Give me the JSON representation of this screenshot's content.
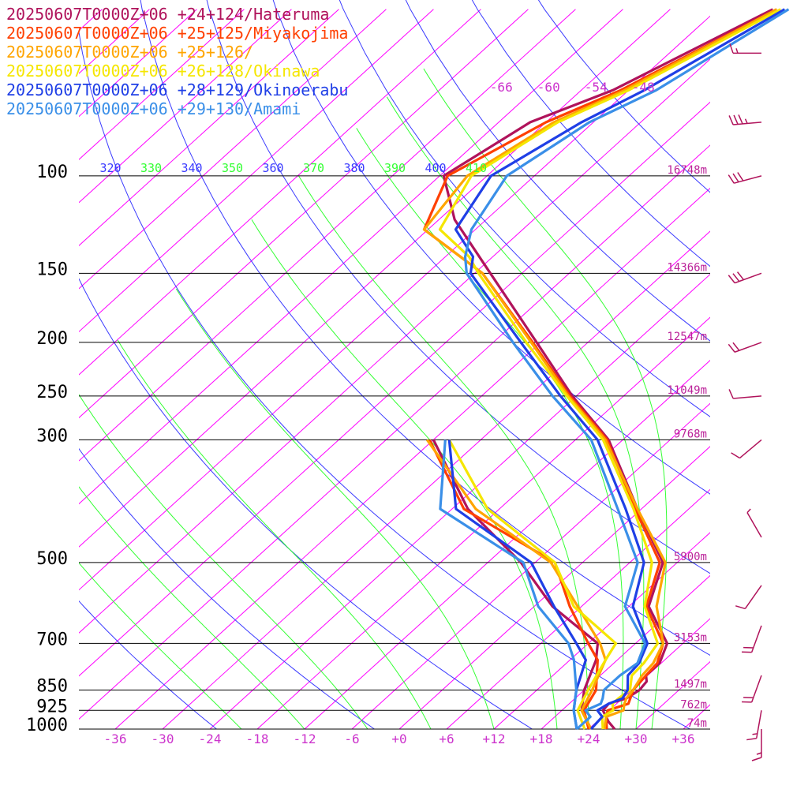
{
  "chart_data": {
    "type": "line",
    "title": "",
    "colors": {
      "isobar": "#000000",
      "isotherm": "#ff00ff",
      "dry_adiabat": "#3b3bff",
      "moist_adiabat": "#33ff33",
      "label_magenta": "#cc33cc",
      "height_label": "#bb2299"
    },
    "legend": [
      {
        "text": "20250607T0000Z+06 +24+124/Hateruma",
        "color": "#b0135b"
      },
      {
        "text": "20250607T0000Z+06 +25+125/Miyakojima",
        "color": "#ff4000"
      },
      {
        "text": "20250607T0000Z+06 +25+126/",
        "color": "#ffa500"
      },
      {
        "text": "20250607T0000Z+06 +26+128/Okinawa",
        "color": "#f5e600"
      },
      {
        "text": "20250607T0000Z+06 +28+129/Okinoerabu",
        "color": "#1f3fe6"
      },
      {
        "text": "20250607T0000Z+06 +29+130/Amami",
        "color": "#3a8fe8"
      }
    ],
    "pressure_levels": [
      {
        "p": 100,
        "label": "100",
        "height": "16748m"
      },
      {
        "p": 150,
        "label": "150",
        "height": "14366m"
      },
      {
        "p": 200,
        "label": "200",
        "height": "12547m"
      },
      {
        "p": 250,
        "label": "250",
        "height": "11049m"
      },
      {
        "p": 300,
        "label": "300",
        "height": "9768m"
      },
      {
        "p": 500,
        "label": "500",
        "height": "5900m"
      },
      {
        "p": 700,
        "label": "700",
        "height": "3153m"
      },
      {
        "p": 850,
        "label": "850",
        "height": "1497m"
      },
      {
        "p": 925,
        "label": "925",
        "height": "762m"
      },
      {
        "p": 1000,
        "label": "1000",
        "height": "74m"
      }
    ],
    "x_tick_labels": [
      "-36",
      "-30",
      "-24",
      "-18",
      "-12",
      "-6",
      "+0",
      "+6",
      "+12",
      "+18",
      "+24",
      "+30",
      "+36"
    ],
    "x_ticks": [
      -36,
      -30,
      -24,
      -18,
      -12,
      -6,
      0,
      6,
      12,
      18,
      24,
      30,
      36
    ],
    "upper_isotherm_labels": [
      "-66",
      "-60",
      "-54",
      "-48"
    ],
    "upper_isotherm_values": [
      -66,
      -60,
      -54,
      -48
    ],
    "theta_labels": [
      {
        "text": "320",
        "kind": "dry"
      },
      {
        "text": "330",
        "kind": "moist"
      },
      {
        "text": "340",
        "kind": "dry"
      },
      {
        "text": "350",
        "kind": "moist"
      },
      {
        "text": "360",
        "kind": "dry"
      },
      {
        "text": "370",
        "kind": "moist"
      },
      {
        "text": "380",
        "kind": "dry"
      },
      {
        "text": "390",
        "kind": "moist"
      },
      {
        "text": "400",
        "kind": "dry"
      },
      {
        "text": "410",
        "kind": "moist"
      }
    ],
    "series": [
      {
        "name": "20250607T0000Z+06 +24+124/Hateruma",
        "color": "#b0135b",
        "temperature": [
          [
            1000,
            27.3
          ],
          [
            970,
            25.5
          ],
          [
            925,
            23.2
          ],
          [
            900,
            23.0
          ],
          [
            880,
            24.5
          ],
          [
            850,
            25.0
          ],
          [
            820,
            24.7
          ],
          [
            800,
            23.8
          ],
          [
            760,
            23.8
          ],
          [
            700,
            22.0
          ],
          [
            600,
            14.5
          ],
          [
            500,
            10.2
          ],
          [
            400,
            -0.5
          ],
          [
            300,
            -13.8
          ],
          [
            250,
            -24.5
          ],
          [
            200,
            -36.5
          ],
          [
            150,
            -52.0
          ],
          [
            120,
            -64.0
          ],
          [
            100,
            -71.5
          ],
          [
            80,
            -68.0
          ],
          [
            70,
            -62.0
          ],
          [
            50,
            -53.0
          ]
        ],
        "dewpoint": [
          [
            1000,
            24.3
          ],
          [
            925,
            20.5
          ],
          [
            850,
            18.0
          ],
          [
            750,
            15.3
          ],
          [
            700,
            13.2
          ],
          [
            600,
            2.3
          ],
          [
            500,
            -7.8
          ],
          [
            400,
            -22.0
          ],
          [
            300,
            -36.0
          ]
        ]
      },
      {
        "name": "20250607T0000Z+06 +25+125/Miyakojima",
        "color": "#ff4000",
        "temperature": [
          [
            1000,
            26.3
          ],
          [
            950,
            24.5
          ],
          [
            925,
            23.8
          ],
          [
            900,
            25.5
          ],
          [
            880,
            25.0
          ],
          [
            850,
            24.2
          ],
          [
            800,
            23.8
          ],
          [
            760,
            23.5
          ],
          [
            700,
            21.5
          ],
          [
            600,
            14.2
          ],
          [
            500,
            9.8
          ],
          [
            400,
            -0.8
          ],
          [
            300,
            -14.0
          ],
          [
            250,
            -24.8
          ],
          [
            200,
            -37.0
          ],
          [
            150,
            -53.0
          ],
          [
            125,
            -66.5
          ],
          [
            100,
            -71.0
          ],
          [
            80,
            -66.0
          ],
          [
            70,
            -61.0
          ],
          [
            50,
            -52.5
          ]
        ],
        "dewpoint": [
          [
            1000,
            24.0
          ],
          [
            925,
            20.8
          ],
          [
            850,
            19.5
          ],
          [
            750,
            15.5
          ],
          [
            700,
            12.0
          ],
          [
            600,
            4.5
          ],
          [
            500,
            -3.5
          ],
          [
            400,
            -22.5
          ],
          [
            300,
            -36.5
          ]
        ]
      },
      {
        "name": "20250607T0000Z+06 +25+126/",
        "color": "#ffa500",
        "temperature": [
          [
            1000,
            26.0
          ],
          [
            950,
            24.5
          ],
          [
            925,
            25.8
          ],
          [
            900,
            25.0
          ],
          [
            880,
            24.5
          ],
          [
            850,
            24.2
          ],
          [
            800,
            23.3
          ],
          [
            760,
            23.0
          ],
          [
            700,
            21.5
          ],
          [
            600,
            15.5
          ],
          [
            500,
            10.5
          ],
          [
            400,
            -0.5
          ],
          [
            300,
            -14.2
          ],
          [
            250,
            -25.0
          ],
          [
            200,
            -37.2
          ],
          [
            150,
            -53.0
          ],
          [
            125,
            -66.5
          ],
          [
            100,
            -68.5
          ],
          [
            80,
            -65.0
          ],
          [
            70,
            -60.5
          ],
          [
            50,
            -52.5
          ]
        ],
        "dewpoint": [
          [
            1000,
            24.3
          ],
          [
            925,
            20.5
          ],
          [
            850,
            19.0
          ],
          [
            750,
            16.5
          ],
          [
            700,
            13.5
          ],
          [
            600,
            5.5
          ],
          [
            500,
            -4.0
          ],
          [
            400,
            -21.0
          ],
          [
            300,
            -36.8
          ]
        ]
      },
      {
        "name": "20250607T0000Z+06 +26+128/Okinawa",
        "color": "#f5e600",
        "temperature": [
          [
            1000,
            25.8
          ],
          [
            950,
            24.0
          ],
          [
            925,
            24.5
          ],
          [
            900,
            23.5
          ],
          [
            880,
            23.5
          ],
          [
            850,
            23.8
          ],
          [
            800,
            22.0
          ],
          [
            760,
            21.8
          ],
          [
            700,
            20.8
          ],
          [
            600,
            14.0
          ],
          [
            500,
            8.8
          ],
          [
            400,
            -1.0
          ],
          [
            300,
            -14.5
          ],
          [
            250,
            -25.2
          ],
          [
            200,
            -37.8
          ],
          [
            150,
            -53.5
          ],
          [
            140,
            -57.0
          ],
          [
            125,
            -64.5
          ],
          [
            100,
            -68.0
          ],
          [
            80,
            -64.5
          ],
          [
            70,
            -60.0
          ],
          [
            50,
            -52.0
          ]
        ],
        "dewpoint": [
          [
            1000,
            23.5
          ],
          [
            925,
            20.0
          ],
          [
            850,
            18.5
          ],
          [
            750,
            16.5
          ],
          [
            700,
            15.5
          ],
          [
            600,
            5.0
          ],
          [
            500,
            -3.5
          ],
          [
            400,
            -19.5
          ],
          [
            300,
            -34.0
          ]
        ]
      },
      {
        "name": "20250607T0000Z+06 +28+129/Okinoerabu",
        "color": "#1f3fe6",
        "temperature": [
          [
            1000,
            24.3
          ],
          [
            950,
            24.0
          ],
          [
            925,
            22.5
          ],
          [
            900,
            23.0
          ],
          [
            880,
            24.0
          ],
          [
            850,
            23.5
          ],
          [
            800,
            21.5
          ],
          [
            760,
            21.2
          ],
          [
            700,
            19.5
          ],
          [
            600,
            12.5
          ],
          [
            500,
            7.8
          ],
          [
            400,
            -2.0
          ],
          [
            300,
            -15.2
          ],
          [
            250,
            -26.0
          ],
          [
            200,
            -38.5
          ],
          [
            150,
            -54.5
          ],
          [
            140,
            -56.5
          ],
          [
            125,
            -62.5
          ],
          [
            100,
            -65.5
          ],
          [
            80,
            -61.5
          ],
          [
            70,
            -58.0
          ],
          [
            50,
            -51.5
          ]
        ],
        "dewpoint": [
          [
            1000,
            22.5
          ],
          [
            925,
            19.5
          ],
          [
            850,
            17.0
          ],
          [
            750,
            14.0
          ],
          [
            700,
            10.5
          ],
          [
            600,
            2.5
          ],
          [
            500,
            -6.5
          ],
          [
            400,
            -23.5
          ],
          [
            300,
            -34.0
          ]
        ]
      },
      {
        "name": "20250607T0000Z+06 +29+130/Amami",
        "color": "#3a8fe8",
        "temperature": [
          [
            1000,
            22.5
          ],
          [
            950,
            22.5
          ],
          [
            925,
            21.0
          ],
          [
            900,
            22.0
          ],
          [
            880,
            21.5
          ],
          [
            850,
            20.5
          ],
          [
            800,
            20.5
          ],
          [
            760,
            21.0
          ],
          [
            700,
            19.2
          ],
          [
            600,
            11.5
          ],
          [
            500,
            7.0
          ],
          [
            400,
            -3.0
          ],
          [
            300,
            -16.0
          ],
          [
            250,
            -27.0
          ],
          [
            200,
            -39.5
          ],
          [
            150,
            -55.0
          ],
          [
            140,
            -57.5
          ],
          [
            125,
            -60.5
          ],
          [
            100,
            -63.5
          ],
          [
            80,
            -60.5
          ],
          [
            70,
            -56.5
          ],
          [
            50,
            -51.0
          ]
        ],
        "dewpoint": [
          [
            1000,
            22.5
          ],
          [
            925,
            19.5
          ],
          [
            850,
            17.0
          ],
          [
            750,
            12.5
          ],
          [
            700,
            9.5
          ],
          [
            600,
            0.5
          ],
          [
            500,
            -7.5
          ],
          [
            400,
            -25.5
          ],
          [
            300,
            -34.5
          ]
        ]
      }
    ],
    "wind_barbs": [
      {
        "p": 60,
        "dir": 270,
        "speed": 15,
        "color": "#b0135b"
      },
      {
        "p": 80,
        "dir": 265,
        "speed": 35,
        "color": "#b0135b"
      },
      {
        "p": 100,
        "dir": 255,
        "speed": 30,
        "color": "#b0135b"
      },
      {
        "p": 150,
        "dir": 250,
        "speed": 30,
        "color": "#b0135b"
      },
      {
        "p": 200,
        "dir": 250,
        "speed": 20,
        "color": "#b0135b"
      },
      {
        "p": 250,
        "dir": 265,
        "speed": 10,
        "color": "#b0135b"
      },
      {
        "p": 300,
        "dir": 230,
        "speed": 10,
        "color": "#b0135b"
      },
      {
        "p": 450,
        "dir": 330,
        "speed": 5,
        "color": "#b0135b"
      },
      {
        "p": 550,
        "dir": 215,
        "speed": 10,
        "color": "#b0135b"
      },
      {
        "p": 650,
        "dir": 200,
        "speed": 20,
        "color": "#b0135b"
      },
      {
        "p": 800,
        "dir": 200,
        "speed": 20,
        "color": "#b0135b"
      },
      {
        "p": 925,
        "dir": 190,
        "speed": 15,
        "color": "#b0135b"
      },
      {
        "p": 1000,
        "dir": 180,
        "speed": 15,
        "color": "#b0135b"
      }
    ]
  }
}
